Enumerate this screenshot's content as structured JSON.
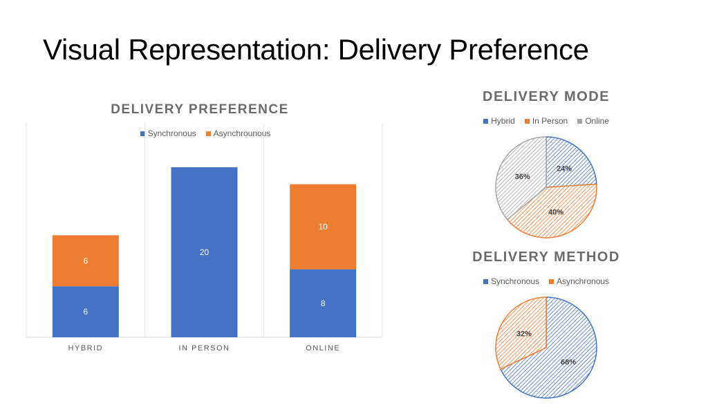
{
  "slide": {
    "title": "Visual Representation: Delivery Preference"
  },
  "colors": {
    "blue": "#4472c4",
    "orange": "#ed7d31",
    "gray": "#a5a5a5"
  },
  "chart_data": [
    {
      "type": "bar",
      "stacked": true,
      "title": "DELIVERY PREFERENCE",
      "categories": [
        "HYBRID",
        "IN PERSON",
        "ONLINE"
      ],
      "series": [
        {
          "name": "Synchronous",
          "values": [
            6,
            20,
            8
          ],
          "color": "#4472c4"
        },
        {
          "name": "Asynchrounous",
          "values": [
            6,
            0,
            10
          ],
          "color": "#ed7d31"
        }
      ],
      "data_labels": [
        [
          "6",
          "20",
          "8"
        ],
        [
          "6",
          "0",
          "10"
        ]
      ],
      "legend_position": "top",
      "grid": false
    },
    {
      "type": "pie",
      "title": "DELIVERY MODE",
      "labels": [
        "Hybrid",
        "In Person",
        "Online"
      ],
      "values": [
        24,
        40,
        36
      ],
      "value_labels": [
        "24%",
        "40%",
        "36%"
      ],
      "colors": [
        "#4472c4",
        "#ed7d31",
        "#a5a5a5"
      ],
      "fill": "hatched",
      "legend_position": "top"
    },
    {
      "type": "pie",
      "title": "DELIVERY METHOD",
      "labels": [
        "Synchronous",
        "Asynchronous"
      ],
      "values": [
        68,
        32
      ],
      "value_labels": [
        "68%",
        "32%"
      ],
      "colors": [
        "#4472c4",
        "#ed7d31"
      ],
      "fill": "hatched",
      "legend_position": "top"
    }
  ]
}
